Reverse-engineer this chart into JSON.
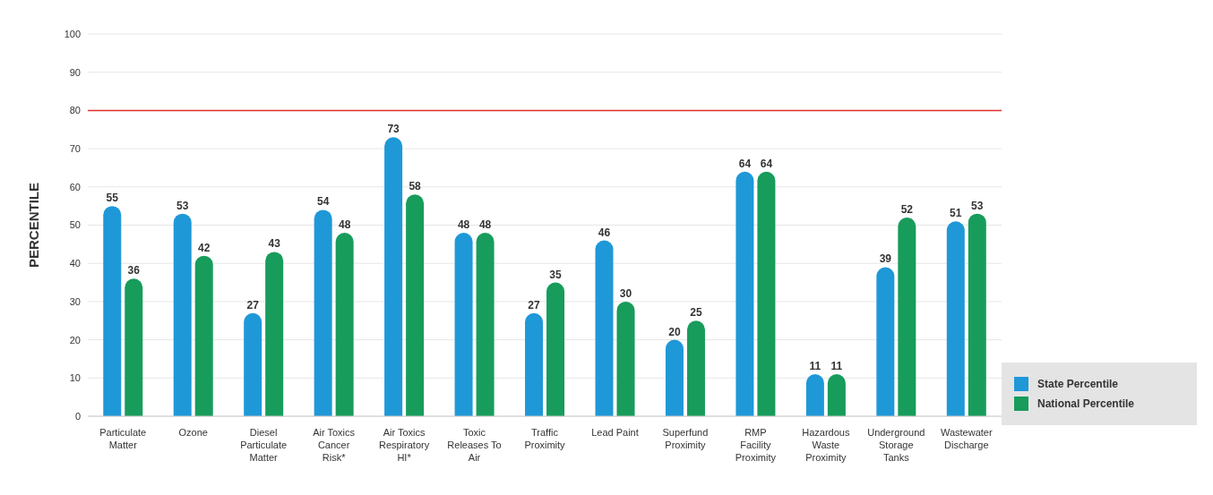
{
  "chart_data": {
    "type": "bar",
    "ylabel": "PERCENTILE",
    "categories": [
      "Particulate Matter",
      "Ozone",
      "Diesel Particulate Matter",
      "Air Toxics Cancer Risk*",
      "Air Toxics Respiratory HI*",
      "Toxic Releases To Air",
      "Traffic Proximity",
      "Lead Paint",
      "Superfund Proximity",
      "RMP Facility Proximity",
      "Hazardous Waste Proximity",
      "Underground Storage Tanks",
      "Wastewater Discharge"
    ],
    "series": [
      {
        "name": "State Percentile",
        "color": "#1f98d8",
        "values": [
          55,
          53,
          27,
          54,
          73,
          48,
          27,
          46,
          20,
          64,
          11,
          39,
          51
        ]
      },
      {
        "name": "National Percentile",
        "color": "#179c5b",
        "values": [
          36,
          42,
          43,
          48,
          58,
          48,
          35,
          30,
          25,
          64,
          11,
          52,
          53
        ]
      }
    ],
    "ylim": [
      0,
      100
    ],
    "yticks": [
      0,
      10,
      20,
      30,
      40,
      50,
      60,
      70,
      80,
      90,
      100
    ],
    "grid": "y",
    "legend": "bottom right",
    "data_labels": true,
    "ref_lines": [
      {
        "axis": "y",
        "value": 80,
        "color": "#e0302c"
      }
    ]
  }
}
